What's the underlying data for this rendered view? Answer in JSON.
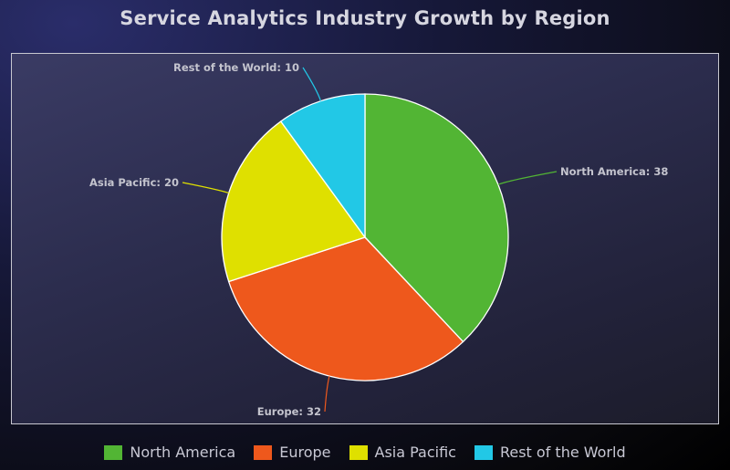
{
  "chart_data": {
    "type": "pie",
    "title": "Service Analytics Industry Growth by Region",
    "slices": [
      {
        "name": "North America",
        "value": 38,
        "color": "#52b534",
        "label": "North America: 38"
      },
      {
        "name": "Europe",
        "value": 32,
        "color": "#ee581c",
        "label": "Europe: 32"
      },
      {
        "name": "Asia Pacific",
        "value": 20,
        "color": "#dfe000",
        "label": "Asia Pacific: 20"
      },
      {
        "name": "Rest of the World",
        "value": 10,
        "color": "#22c8e6",
        "label": "Rest of the World: 10"
      }
    ],
    "legend_position": "bottom"
  }
}
